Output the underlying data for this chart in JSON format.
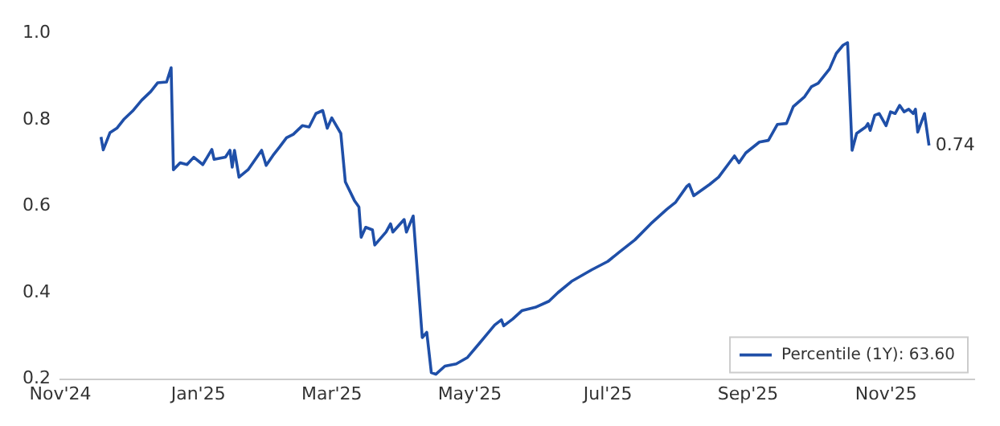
{
  "chart_data": {
    "type": "line",
    "x": [
      "2024-11-19",
      "2024-11-20",
      "2024-11-23",
      "2024-11-26",
      "2024-11-29",
      "2024-12-03",
      "2024-12-07",
      "2024-12-11",
      "2024-12-14",
      "2024-12-18",
      "2024-12-20",
      "2024-12-21",
      "2024-12-24",
      "2024-12-27",
      "2024-12-30",
      "2025-01-03",
      "2025-01-07",
      "2025-01-08",
      "2025-01-13",
      "2025-01-15",
      "2025-01-16",
      "2025-01-17",
      "2025-01-19",
      "2025-01-23",
      "2025-01-29",
      "2025-01-31",
      "2025-02-03",
      "2025-02-06",
      "2025-02-09",
      "2025-02-12",
      "2025-02-16",
      "2025-02-19",
      "2025-02-22",
      "2025-02-25",
      "2025-02-27",
      "2025-03-01",
      "2025-03-05",
      "2025-03-07",
      "2025-03-11",
      "2025-03-13",
      "2025-03-14",
      "2025-03-16",
      "2025-03-19",
      "2025-03-20",
      "2025-03-25",
      "2025-03-27",
      "2025-03-28",
      "2025-04-02",
      "2025-04-03",
      "2025-04-06",
      "2025-04-10",
      "2025-04-12",
      "2025-04-14",
      "2025-04-16",
      "2025-04-20",
      "2025-04-25",
      "2025-04-30",
      "2025-05-05",
      "2025-05-08",
      "2025-05-12",
      "2025-05-15",
      "2025-05-16",
      "2025-05-20",
      "2025-05-24",
      "2025-05-30",
      "2025-06-05",
      "2025-06-09",
      "2025-06-15",
      "2025-06-24",
      "2025-07-01",
      "2025-07-06",
      "2025-07-13",
      "2025-07-20",
      "2025-07-27",
      "2025-07-31",
      "2025-08-05",
      "2025-08-06",
      "2025-08-08",
      "2025-08-15",
      "2025-08-19",
      "2025-08-24",
      "2025-08-26",
      "2025-08-28",
      "2025-08-31",
      "2025-09-06",
      "2025-09-10",
      "2025-09-14",
      "2025-09-18",
      "2025-09-21",
      "2025-09-26",
      "2025-09-29",
      "2025-10-02",
      "2025-10-07",
      "2025-10-10",
      "2025-10-13",
      "2025-10-15",
      "2025-10-17",
      "2025-10-19",
      "2025-10-23",
      "2025-10-24",
      "2025-10-25",
      "2025-10-27",
      "2025-10-29",
      "2025-11-01",
      "2025-11-03",
      "2025-11-05",
      "2025-11-07",
      "2025-11-09",
      "2025-11-11",
      "2025-11-13",
      "2025-11-14",
      "2025-11-15",
      "2025-11-18",
      "2025-11-20"
    ],
    "series": [
      {
        "name": "Percentile (1Y): 63.60",
        "color": "#1f4fa8",
        "values": [
          0.76,
          0.73,
          0.77,
          0.78,
          0.8,
          0.82,
          0.845,
          0.865,
          0.885,
          0.887,
          0.92,
          0.684,
          0.7,
          0.696,
          0.713,
          0.696,
          0.731,
          0.708,
          0.713,
          0.729,
          0.69,
          0.729,
          0.667,
          0.684,
          0.729,
          0.694,
          0.717,
          0.737,
          0.758,
          0.766,
          0.786,
          0.783,
          0.814,
          0.821,
          0.78,
          0.804,
          0.768,
          0.656,
          0.613,
          0.598,
          0.528,
          0.551,
          0.545,
          0.51,
          0.54,
          0.559,
          0.54,
          0.569,
          0.54,
          0.577,
          0.296,
          0.308,
          0.215,
          0.211,
          0.23,
          0.235,
          0.25,
          0.281,
          0.3,
          0.325,
          0.337,
          0.323,
          0.339,
          0.358,
          0.366,
          0.38,
          0.4,
          0.426,
          0.453,
          0.472,
          0.493,
          0.522,
          0.559,
          0.592,
          0.609,
          0.646,
          0.65,
          0.624,
          0.65,
          0.667,
          0.702,
          0.716,
          0.7,
          0.723,
          0.748,
          0.752,
          0.789,
          0.791,
          0.83,
          0.853,
          0.876,
          0.884,
          0.917,
          0.953,
          0.972,
          0.978,
          0.729,
          0.768,
          0.783,
          0.791,
          0.775,
          0.81,
          0.814,
          0.786,
          0.818,
          0.814,
          0.833,
          0.818,
          0.824,
          0.814,
          0.824,
          0.771,
          0.814,
          0.74
        ]
      }
    ],
    "xticks": [
      {
        "value": "2024-11-01",
        "label": "Nov'24"
      },
      {
        "value": "2025-01-01",
        "label": "Jan'25"
      },
      {
        "value": "2025-03-01",
        "label": "Mar'25"
      },
      {
        "value": "2025-05-01",
        "label": "May'25"
      },
      {
        "value": "2025-07-01",
        "label": "Jul'25"
      },
      {
        "value": "2025-09-01",
        "label": "Sep'25"
      },
      {
        "value": "2025-11-01",
        "label": "Nov'25"
      }
    ],
    "xlim": [
      "2024-11-01",
      "2025-12-10"
    ],
    "ylim": [
      0.2,
      1.0
    ],
    "yticks": [
      0.2,
      0.4,
      0.6,
      0.8,
      {
        "value": 1.0,
        "label": "1.0"
      }
    ],
    "annotations": [
      {
        "text": "0.74",
        "x": "2025-11-20",
        "y": 0.74
      }
    ],
    "legend": "bottom right",
    "grid": false,
    "marker": "none"
  }
}
